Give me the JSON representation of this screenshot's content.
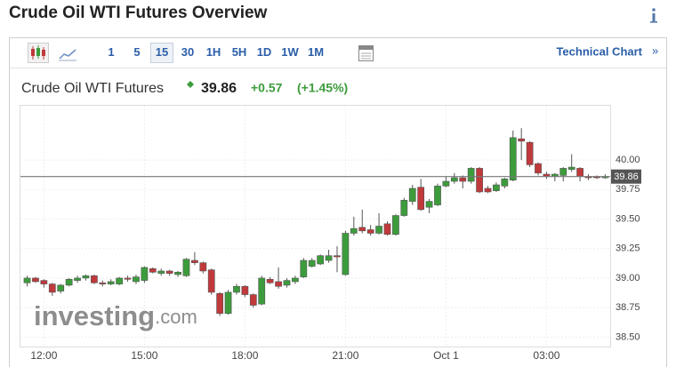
{
  "header": {
    "title": "Crude Oil WTI Futures Overview"
  },
  "toolbar": {
    "intervals": [
      "1",
      "5",
      "15",
      "30",
      "1H",
      "5H",
      "1D",
      "1W",
      "1M"
    ],
    "selected": "15",
    "link": "Technical Chart",
    "link_arrow": "»"
  },
  "quote": {
    "name": "Crude Oil WTI Futures",
    "price": "39.86",
    "change": "+0.57",
    "change_pct": "(+1.45%)"
  },
  "watermark": {
    "main": "investing",
    "suffix": ".com"
  },
  "chart_data": {
    "type": "candlestick",
    "x": [
      -0.5,
      -0.25,
      0,
      0.25,
      0.5,
      0.75,
      1,
      1.25,
      1.5,
      1.75,
      2,
      2.25,
      2.5,
      2.75,
      3,
      3.25,
      3.5,
      3.75,
      4,
      4.25,
      4.5,
      4.75,
      5,
      5.25,
      5.5,
      5.75,
      6,
      6.25,
      6.5,
      6.75,
      7,
      7.25,
      7.5,
      7.75,
      8,
      8.25,
      8.5,
      8.75,
      9,
      9.25,
      9.5,
      9.75,
      10,
      10.25,
      10.5,
      10.75,
      11,
      11.25,
      11.5,
      11.75,
      12,
      12.25,
      12.5,
      12.75,
      13,
      13.25,
      13.5,
      13.75,
      14,
      14.25,
      14.5,
      14.75,
      15,
      15.25,
      15.5,
      15.75,
      16,
      16.25,
      16.5,
      16.75
    ],
    "open": [
      38.96,
      39.0,
      38.98,
      38.95,
      38.89,
      38.94,
      38.98,
      39.0,
      39.02,
      38.96,
      38.95,
      38.95,
      39.0,
      38.97,
      38.98,
      39.08,
      39.04,
      39.06,
      39.03,
      39.02,
      39.15,
      39.13,
      39.07,
      38.87,
      38.7,
      38.88,
      38.93,
      38.86,
      38.78,
      38.99,
      38.97,
      38.94,
      38.97,
      39.01,
      39.1,
      39.12,
      39.15,
      39.19,
      39.03,
      39.38,
      39.43,
      39.41,
      39.38,
      39.46,
      39.37,
      39.53,
      39.65,
      39.77,
      39.6,
      39.62,
      39.78,
      39.82,
      39.85,
      39.82,
      39.93,
      39.76,
      39.74,
      39.78,
      39.83,
      40.18,
      40.15,
      39.97,
      39.88,
      39.86,
      39.87,
      39.92,
      39.93,
      39.86,
      39.86,
      39.85
    ],
    "high": [
      39.02,
      39.01,
      38.99,
      38.96,
      38.95,
      39.0,
      39.02,
      39.03,
      39.03,
      38.98,
      38.99,
      39.01,
      39.02,
      39.03,
      39.1,
      39.09,
      39.08,
      39.07,
      39.06,
      39.17,
      39.22,
      39.14,
      39.08,
      38.88,
      38.9,
      38.95,
      38.94,
      38.87,
      39.02,
      39.01,
      39.09,
      39.0,
      39.02,
      39.17,
      39.17,
      39.2,
      39.24,
      39.27,
      39.4,
      39.52,
      39.58,
      39.45,
      39.55,
      39.48,
      39.54,
      39.68,
      39.79,
      39.84,
      39.67,
      39.8,
      39.86,
      39.89,
      39.87,
      39.94,
      39.94,
      39.78,
      39.81,
      39.85,
      40.25,
      40.27,
      40.16,
      39.98,
      39.9,
      39.89,
      39.94,
      40.05,
      39.94,
      39.88,
      39.87,
      39.88
    ],
    "low": [
      38.93,
      38.96,
      38.92,
      38.85,
      38.87,
      38.93,
      38.96,
      38.98,
      38.95,
      38.93,
      38.94,
      38.94,
      38.97,
      38.95,
      38.96,
      39.04,
      39.02,
      39.02,
      39.01,
      39.01,
      39.11,
      39.04,
      38.86,
      38.68,
      38.69,
      38.86,
      38.84,
      38.75,
      38.77,
      38.95,
      38.91,
      38.92,
      38.95,
      39.0,
      39.09,
      39.11,
      39.13,
      39.05,
      39.02,
      39.36,
      39.38,
      39.36,
      39.37,
      39.36,
      39.36,
      39.52,
      39.62,
      39.57,
      39.55,
      39.61,
      39.77,
      39.8,
      39.76,
      39.8,
      39.72,
      39.72,
      39.73,
      39.76,
      39.82,
      40.0,
      39.94,
      39.87,
      39.84,
      39.82,
      39.82,
      39.9,
      39.82,
      39.83,
      39.84,
      39.84
    ],
    "close": [
      39.0,
      38.97,
      38.95,
      38.88,
      38.94,
      38.99,
      39.0,
      39.02,
      38.96,
      38.95,
      38.97,
      39.0,
      38.99,
      39.01,
      39.09,
      39.05,
      39.06,
      39.04,
      39.05,
      39.16,
      39.13,
      39.06,
      38.88,
      38.7,
      38.88,
      38.93,
      38.86,
      38.77,
      39.0,
      38.96,
      38.93,
      38.98,
      39.0,
      39.15,
      39.15,
      39.19,
      39.19,
      39.18,
      39.38,
      39.42,
      39.4,
      39.38,
      39.44,
      39.37,
      39.53,
      39.66,
      39.76,
      39.58,
      39.65,
      39.78,
      39.82,
      39.85,
      39.82,
      39.93,
      39.73,
      39.73,
      39.79,
      39.84,
      40.19,
      40.16,
      39.96,
      39.89,
      39.86,
      39.88,
      39.93,
      39.94,
      39.86,
      39.85,
      39.85,
      39.86
    ],
    "up_color": "#3c9c3c",
    "down_color": "#c0393b",
    "last_price": 39.86,
    "xlim": [
      -0.7,
      16.9
    ],
    "xticks": [
      {
        "value": 0,
        "label": "12:00"
      },
      {
        "value": 3,
        "label": "15:00"
      },
      {
        "value": 6,
        "label": "18:00"
      },
      {
        "value": 9,
        "label": "21:00"
      },
      {
        "value": 12,
        "label": "Oct 1"
      },
      {
        "value": 15,
        "label": "03:00"
      }
    ],
    "ylim": [
      38.42,
      40.46
    ],
    "yticks": [
      {
        "value": 38.5,
        "label": "38.50"
      },
      {
        "value": 38.75,
        "label": "38.75"
      },
      {
        "value": 39,
        "label": "39.00"
      },
      {
        "value": 39.25,
        "label": "39.25"
      },
      {
        "value": 39.5,
        "label": "39.50"
      },
      {
        "value": 39.75,
        "label": "39.75"
      },
      {
        "value": 40,
        "label": "40.00"
      }
    ],
    "grid": true
  }
}
